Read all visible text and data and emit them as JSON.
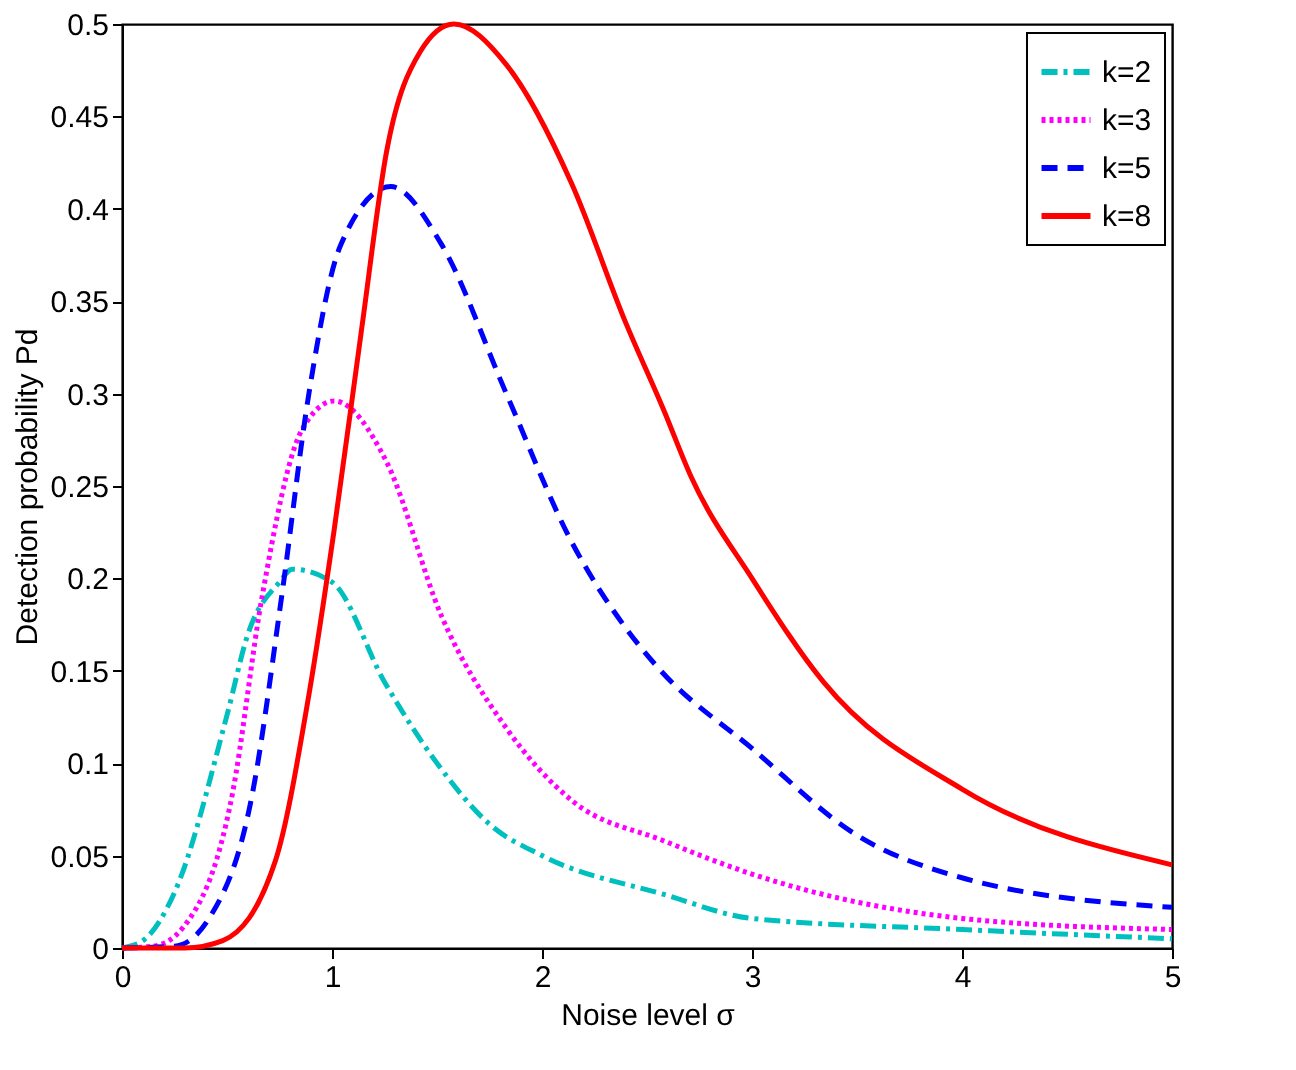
{
  "chart_data": {
    "type": "line",
    "xlabel": "Noise level σ",
    "ylabel": "Detection probability  Pd",
    "xlim": [
      0,
      5
    ],
    "xticks": [
      0,
      1,
      2,
      3,
      4,
      5
    ],
    "ylim": [
      0,
      0.5
    ],
    "yticks": [
      0,
      0.05,
      0.1,
      0.15,
      0.2,
      0.25,
      0.3,
      0.35,
      0.4,
      0.45,
      0.5
    ],
    "grid": false,
    "legend": "top right",
    "marker": "none",
    "series": [
      {
        "name": "k=2",
        "color": "#00bfbf",
        "line_style": "dashdot",
        "x": [
          0,
          0.1,
          0.25,
          0.5,
          0.6,
          0.75,
          0.81,
          1.0,
          1.25,
          1.5,
          1.75,
          2.0,
          2.58,
          3,
          4,
          5
        ],
        "values": [
          0,
          0.004,
          0.03,
          0.126,
          0.17,
          0.198,
          0.205,
          0.198,
          0.144,
          0.1,
          0.067,
          0.05,
          0.029,
          0.016,
          0.01,
          0.005
        ]
      },
      {
        "name": "k=3",
        "color": "#ff00ff",
        "line_style": "dotted",
        "x": [
          0,
          0.15,
          0.29,
          0.525,
          0.667,
          0.855,
          1.01,
          1.26,
          1.52,
          1.83,
          2.14,
          2.58,
          3,
          4,
          5
        ],
        "values": [
          0,
          0.001,
          0.011,
          0.083,
          0.19,
          0.28,
          0.296,
          0.263,
          0.18,
          0.119,
          0.08,
          0.058,
          0.04,
          0.016,
          0.01
        ]
      },
      {
        "name": "k=5",
        "color": "#0000ff",
        "line_style": "dashed",
        "x": [
          0,
          0.25,
          0.42,
          0.62,
          0.76,
          0.89,
          1.04,
          1.28,
          1.52,
          1.83,
          2.14,
          2.4,
          2.55,
          3,
          3.5,
          4,
          5
        ],
        "values": [
          0,
          0.001,
          0.017,
          0.083,
          0.19,
          0.3,
          0.38,
          0.412,
          0.381,
          0.3,
          0.22,
          0.173,
          0.152,
          0.108,
          0.061,
          0.038,
          0.022
        ]
      },
      {
        "name": "k=8",
        "color": "#ff0000",
        "line_style": "solid",
        "x": [
          0,
          0.3,
          0.48,
          0.73,
          0.89,
          1.01,
          1.14,
          1.26,
          1.42,
          1.58,
          1.83,
          2.14,
          2.4,
          2.58,
          2.71,
          3,
          3.34,
          4,
          5
        ],
        "values": [
          0,
          0.0,
          0.004,
          0.047,
          0.137,
          0.226,
          0.334,
          0.431,
          0.485,
          0.5,
          0.478,
          0.414,
          0.338,
          0.291,
          0.255,
          0.2,
          0.144,
          0.086,
          0.045
        ]
      }
    ]
  }
}
